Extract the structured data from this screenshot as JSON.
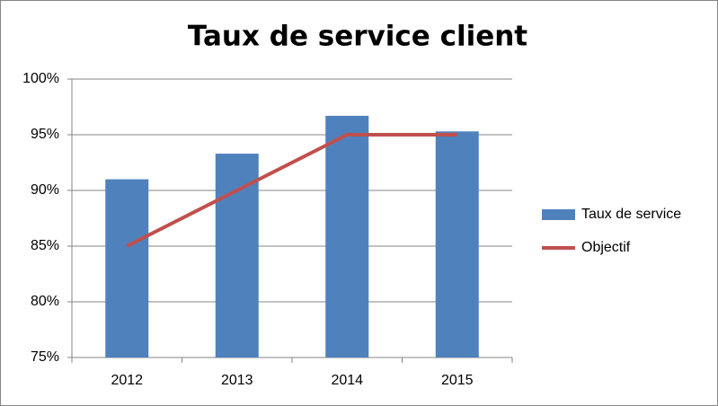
{
  "chart_data": {
    "type": "bar",
    "title": "Taux de service client",
    "categories": [
      "2012",
      "2013",
      "2014",
      "2015"
    ],
    "series": [
      {
        "name": "Taux de service",
        "type": "bar",
        "color": "#4f81bd",
        "values": [
          91,
          93.3,
          96.7,
          95.3
        ]
      },
      {
        "name": "Objectif",
        "type": "line",
        "color": "#c0504d",
        "values": [
          85,
          90,
          95,
          95
        ]
      }
    ],
    "ylim": [
      75,
      100
    ],
    "yticks": [
      {
        "value": 75,
        "label": "75%"
      },
      {
        "value": 80,
        "label": "80%"
      },
      {
        "value": 85,
        "label": "85%"
      },
      {
        "value": 90,
        "label": "90%"
      },
      {
        "value": 95,
        "label": "95%"
      },
      {
        "value": 100,
        "label": "100%"
      }
    ],
    "grid": true,
    "legend": "right"
  }
}
